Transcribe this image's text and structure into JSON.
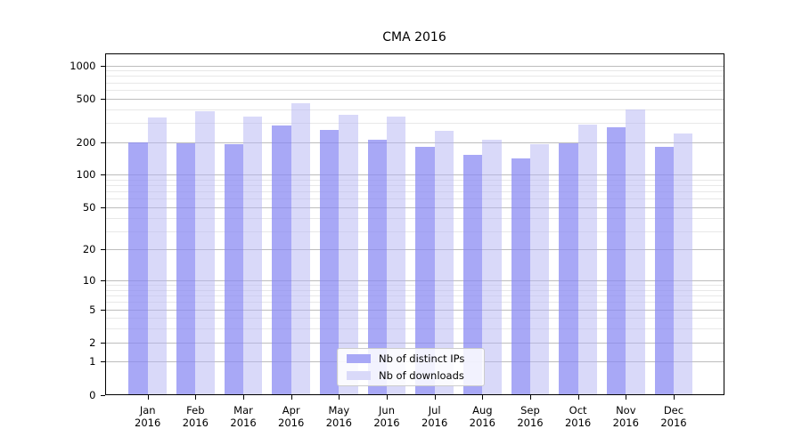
{
  "figure": {
    "title": "CMA 2016"
  },
  "chart_data": {
    "type": "bar",
    "title": "CMA 2016",
    "categories": [
      "Jan",
      "Feb",
      "Mar",
      "Apr",
      "May",
      "Jun",
      "Jul",
      "Aug",
      "Sep",
      "Oct",
      "Nov",
      "Dec"
    ],
    "category_year": "2016",
    "series": [
      {
        "name": "Nb of distinct IPs",
        "fill": "rgba(134,134,242,0.72)",
        "color_hex": "#a8a8f6",
        "values": [
          200,
          196,
          190,
          285,
          258,
          208,
          182,
          152,
          141,
          193,
          275,
          180
        ]
      },
      {
        "name": "Nb of downloads",
        "fill": "rgba(179,179,243,0.5)",
        "color_hex": "#d9d9f9",
        "values": [
          335,
          380,
          340,
          450,
          357,
          343,
          253,
          211,
          190,
          290,
          400,
          237
        ]
      }
    ],
    "yscale": "log1p",
    "ylim": [
      0,
      1300
    ],
    "yticks": [
      0,
      1,
      2,
      5,
      10,
      20,
      50,
      100,
      200,
      500,
      1000
    ],
    "yticks_minor": [
      3,
      4,
      6,
      7,
      8,
      9,
      30,
      40,
      60,
      70,
      80,
      90,
      300,
      400,
      600,
      700,
      800,
      900
    ],
    "grid": true,
    "legend_position": "lower-center",
    "xlabel": "",
    "ylabel": ""
  },
  "colors": {
    "grid_major": "#bdbdbd",
    "grid_minor": "#e8e8e8",
    "spine": "#000000",
    "text": "#000000",
    "legend_border": "#cccccc",
    "legend_bg": "#ffffff"
  }
}
